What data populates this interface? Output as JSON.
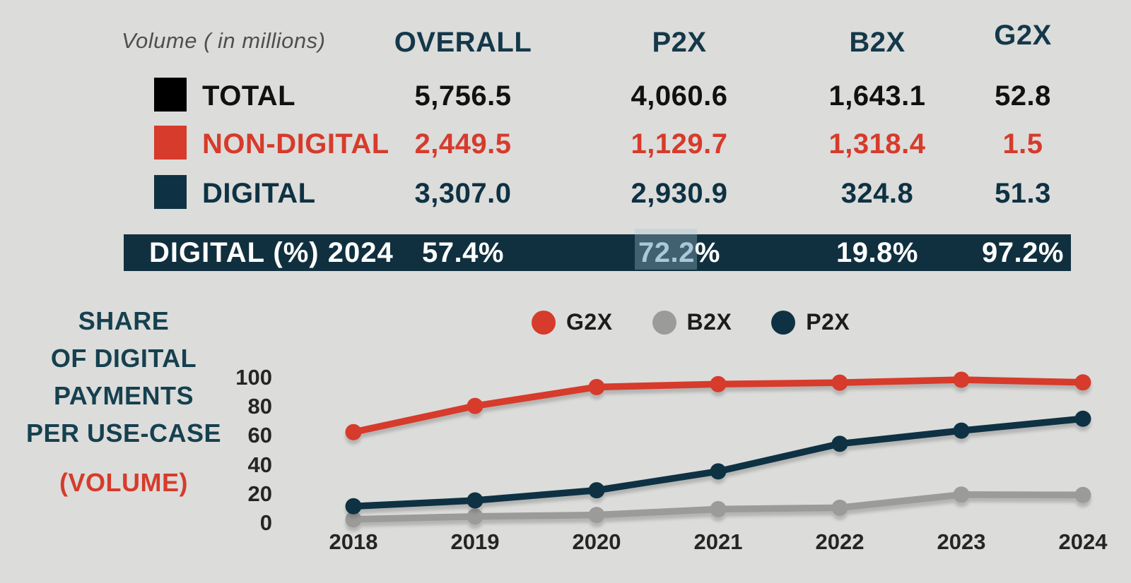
{
  "table": {
    "unit_label": "Volume ( in millions)",
    "columns": [
      "OVERALL",
      "P2X",
      "B2X",
      "G2X"
    ],
    "header_color": "#14384a",
    "rows": [
      {
        "label": "TOTAL",
        "swatch_color": "#000000",
        "text_color": "#111111",
        "values": [
          "5,756.5",
          "4,060.6",
          "1,643.1",
          "52.8"
        ]
      },
      {
        "label": "NON-DIGITAL",
        "swatch_color": "#d63b2b",
        "text_color": "#d63b2b",
        "values": [
          "2,449.5",
          "1,129.7",
          "1,318.4",
          "1.5"
        ]
      },
      {
        "label": "DIGITAL",
        "swatch_color": "#0e3243",
        "text_color": "#0e3243",
        "values": [
          "3,307.0",
          "2,930.9",
          "324.8",
          "51.3"
        ]
      }
    ],
    "banner": {
      "label": "DIGITAL (%) 2024",
      "values": [
        "57.4%",
        "72.2%",
        "19.8%",
        "97.2%"
      ],
      "highlighted_value": "72.2",
      "background": "#11303f",
      "text_color": "#ffffff",
      "highlight_text_color": "#aac8da"
    }
  },
  "chart": {
    "title_lines": [
      "SHARE",
      "OF DIGITAL",
      "PAYMENTS",
      "PER USE-CASE"
    ],
    "subtitle": "(VOLUME)",
    "title_color": "#15404f",
    "subtitle_color": "#d63b2b"
  },
  "chart_data": {
    "type": "line",
    "x": [
      "2018",
      "2019",
      "2020",
      "2021",
      "2022",
      "2023",
      "2024"
    ],
    "ylim": [
      0,
      100
    ],
    "yticks": [
      0,
      20,
      40,
      60,
      80,
      100
    ],
    "grid": false,
    "legend_position": "top",
    "xlabel": "",
    "ylabel": "",
    "series": [
      {
        "name": "G2X",
        "color": "#d63b2b",
        "values": [
          63,
          81,
          94,
          96,
          97,
          99,
          97.2
        ]
      },
      {
        "name": "B2X",
        "color": "#9b9b99",
        "values": [
          3,
          5,
          6,
          10,
          11,
          20,
          19.8
        ]
      },
      {
        "name": "P2X",
        "color": "#0e3243",
        "values": [
          12,
          16,
          23,
          36,
          55,
          64,
          72.2
        ]
      }
    ]
  },
  "colors": {
    "background": "#dcdcda",
    "red": "#d63b2b",
    "navy": "#0e3243",
    "gray": "#9b9b99"
  }
}
